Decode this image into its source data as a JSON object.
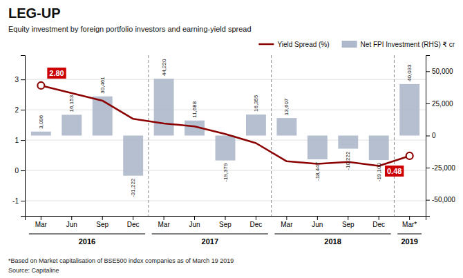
{
  "chart_data": {
    "type": "bar",
    "title": "LEG-UP",
    "subtitle": "Equity investment by foreign portfolio investors and earning-yield spread",
    "footnote": "*Based on Market capitalisation of BSE500 index companies as of March 19 2019",
    "source": "Source: Capitaline",
    "categories": [
      "Mar",
      "Jun",
      "Sep",
      "Dec",
      "Mar",
      "Jun",
      "Sep",
      "Dec",
      "Mar",
      "Jun",
      "Sep",
      "Dec",
      "Mar*"
    ],
    "x_groups": [
      {
        "label": "2016",
        "start": 0,
        "end": 3
      },
      {
        "label": "2017",
        "start": 4,
        "end": 7
      },
      {
        "label": "2018",
        "start": 8,
        "end": 11
      },
      {
        "label": "2019",
        "start": 12,
        "end": 12
      }
    ],
    "series": [
      {
        "name": "Yield Spread (%)",
        "type": "line",
        "color": "#8b0000",
        "values": [
          2.8,
          2.55,
          2.3,
          1.7,
          1.55,
          1.45,
          1.2,
          0.9,
          0.3,
          0.22,
          0.28,
          0.15,
          0.48
        ]
      },
      {
        "name": "Net FPI Investment (RHS) ₹ cr",
        "type": "bar",
        "axis": "y2",
        "color": "#adb8ca",
        "data_labels": true,
        "values": [
          3096,
          16153,
          30461,
          -31222,
          44220,
          11688,
          -19379,
          16355,
          13607,
          -18447,
          -10222,
          -19100,
          40033
        ],
        "value_labels": [
          "3,096",
          "16,153",
          "30,461",
          "-31,222",
          "44,220",
          "11,688",
          "-19,379",
          "16,355",
          "13,607",
          "-18,447",
          "-10,222",
          "-19,100",
          "40,033"
        ]
      }
    ],
    "annotations": [
      {
        "text": "2.80",
        "x": 0,
        "y": 2.8,
        "color": "#cc0000"
      },
      {
        "text": "0.48",
        "x": 12,
        "y": 0.48,
        "color": "#cc0000"
      }
    ],
    "ylim": [
      -1.5,
      3.8
    ],
    "yticks": [
      -1,
      0,
      1,
      2,
      3
    ],
    "y2lim": [
      -62500,
      62500
    ],
    "y2ticks": [
      {
        "value": -50000,
        "label": "-50,000"
      },
      {
        "value": -25000,
        "label": "-25,000"
      },
      0,
      {
        "value": 25000,
        "label": "25,000"
      },
      {
        "value": 50000,
        "label": "50,000"
      }
    ],
    "grid": true,
    "legend": "top"
  }
}
